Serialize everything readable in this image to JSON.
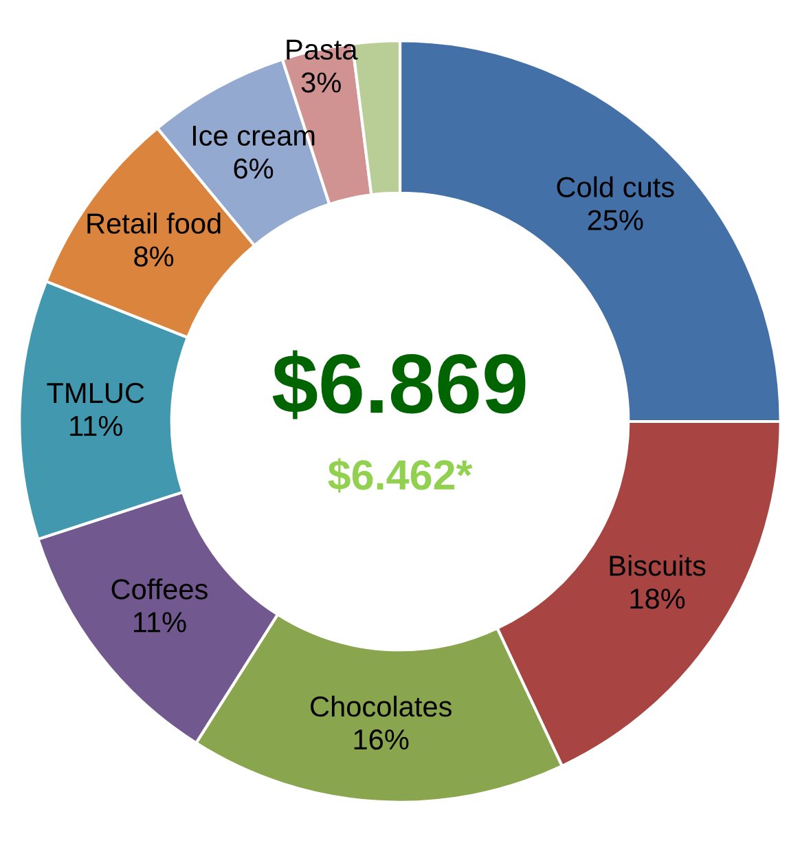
{
  "chart_data": {
    "type": "donut",
    "categories": [
      "Cold cuts",
      "Biscuits",
      "Chocolates",
      "Coffees",
      "TMLUC",
      "Retail food",
      "Ice cream",
      "Pasta",
      null
    ],
    "values": [
      25,
      18,
      16,
      11,
      11,
      8,
      6,
      3,
      2
    ],
    "value_labels": [
      "25%",
      "18%",
      "16%",
      "11%",
      "11%",
      "8%",
      "6%",
      "3%",
      null
    ],
    "colors": [
      "#4470a8",
      "#a84543",
      "#89a54e",
      "#71588f",
      "#4198af",
      "#db843d",
      "#93a9cf",
      "#d19392",
      "#b9cd96"
    ],
    "annotations": [
      "$6.869",
      "$6.462*"
    ],
    "legend": false
  }
}
